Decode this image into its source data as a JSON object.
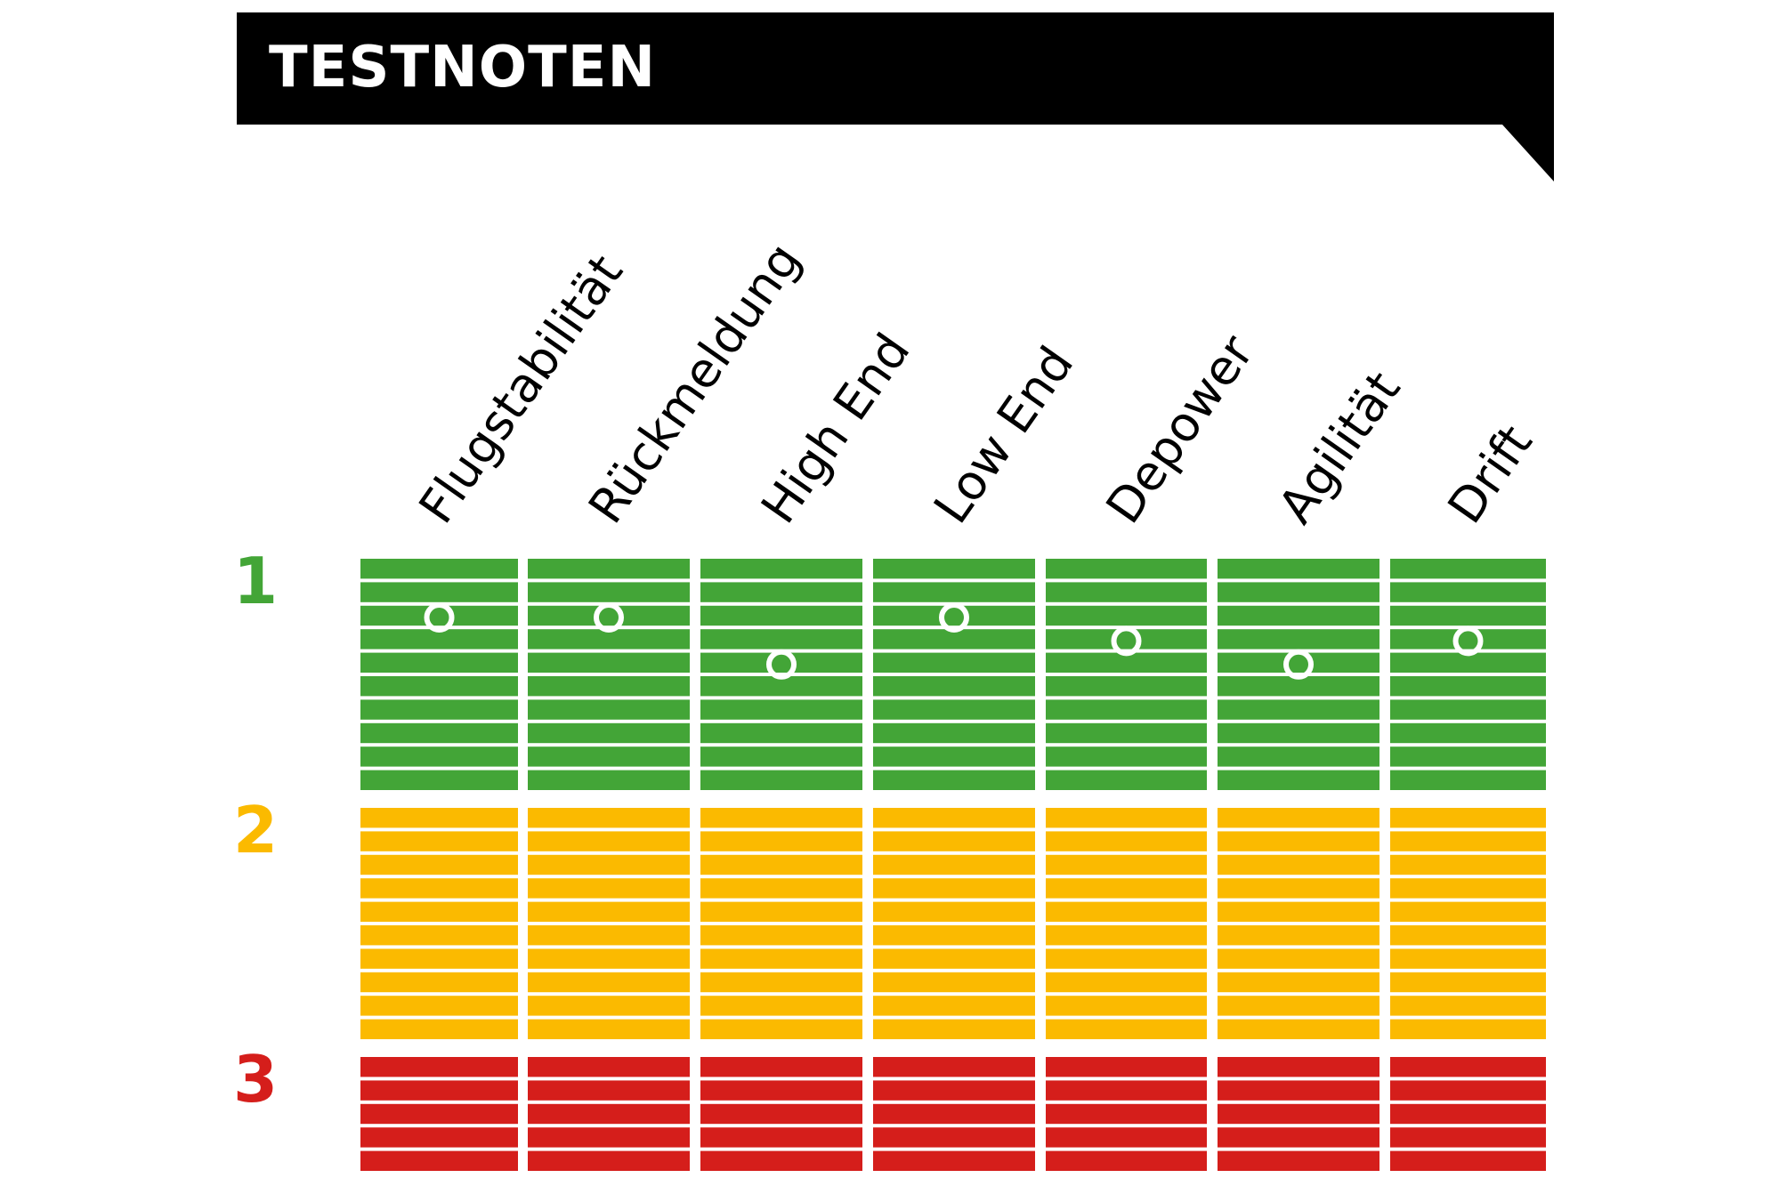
{
  "title": "TESTNOTEN",
  "colors": {
    "banner": "#000000",
    "grade_1": "#43a537",
    "grade_2": "#fbba00",
    "grade_3": "#d51e1b",
    "marker": "#ffffff"
  },
  "chart_data": {
    "type": "rating-grid",
    "categories": [
      "Flugstabilität",
      "Rückmeldung",
      "High End",
      "Low End",
      "Depower",
      "Agilität",
      "Drift"
    ],
    "grades": [
      {
        "label": "1",
        "color": "#43a537",
        "subdivisions": 10
      },
      {
        "label": "2",
        "color": "#fbba00",
        "subdivisions": 10
      },
      {
        "label": "3",
        "color": "#d51e1b",
        "subdivisions": 5
      }
    ],
    "values": [
      1.25,
      1.25,
      1.45,
      1.25,
      1.35,
      1.45,
      1.35
    ],
    "scale_direction": "1 best (top) to 3 worst (bottom)"
  }
}
